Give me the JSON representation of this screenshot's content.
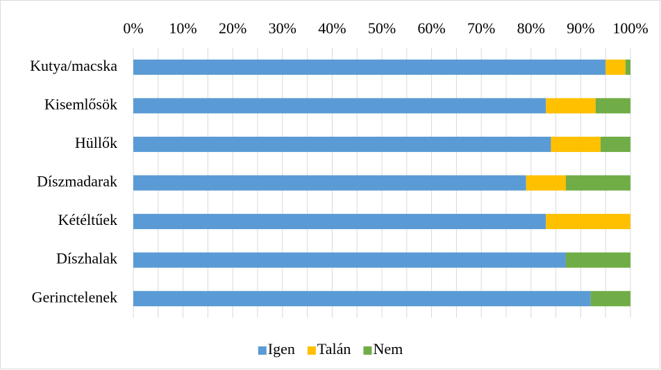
{
  "chart_data": {
    "type": "stacked_barh",
    "categories": [
      "Kutya/macska",
      "Kisemlősök",
      "Hüllők",
      "Díszmadarak",
      "Kétéltűek",
      "Díszhalak",
      "Gerinctelenek"
    ],
    "series": [
      {
        "name": "Igen",
        "color": "#5b9bd5",
        "values": [
          95,
          83,
          84,
          79,
          83,
          87,
          92
        ]
      },
      {
        "name": "Talán",
        "color": "#ffc000",
        "values": [
          4,
          10,
          10,
          8,
          17,
          0,
          0
        ]
      },
      {
        "name": "Nem",
        "color": "#70ad47",
        "values": [
          1,
          7,
          6,
          13,
          0,
          13,
          8
        ]
      }
    ],
    "xlim": [
      0,
      100
    ],
    "xticks": [
      {
        "value": 0,
        "label": "0%"
      },
      {
        "value": 10,
        "label": "10%"
      },
      {
        "value": 20,
        "label": "20%"
      },
      {
        "value": 30,
        "label": "30%"
      },
      {
        "value": 40,
        "label": "40%"
      },
      {
        "value": 50,
        "label": "50%"
      },
      {
        "value": 60,
        "label": "60%"
      },
      {
        "value": 70,
        "label": "70%"
      },
      {
        "value": 80,
        "label": "80%"
      },
      {
        "value": 90,
        "label": "90%"
      },
      {
        "value": 100,
        "label": "100%"
      }
    ],
    "minor_xticks": [
      5,
      15,
      25,
      35,
      45,
      55,
      65,
      75,
      85,
      95
    ],
    "grid": true,
    "legend": "bottom"
  }
}
